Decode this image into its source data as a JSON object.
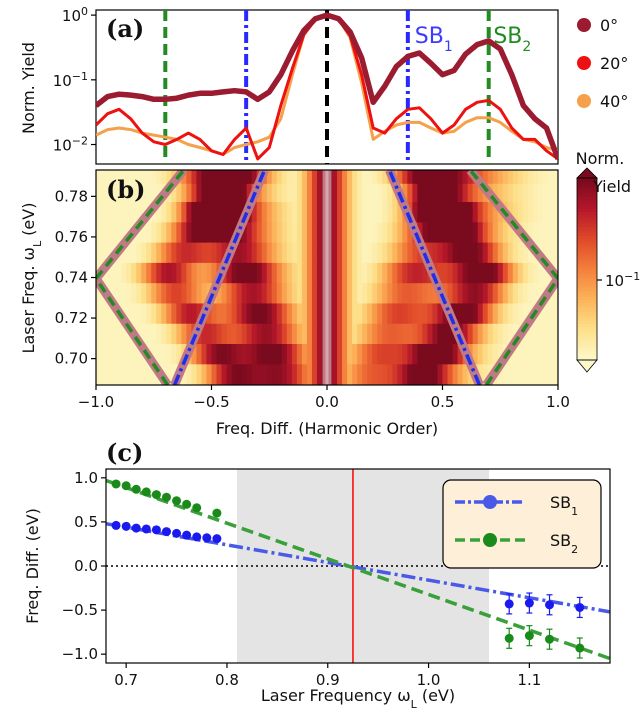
{
  "chart_data": [
    {
      "panel": "(a)",
      "type": "line",
      "ylabel": "Norm. Yield",
      "yscale": "log",
      "ylim": [
        0.005,
        1.2
      ],
      "xlim": [
        -1.0,
        1.0
      ],
      "yticks": [
        {
          "value": 0.01,
          "base": "10",
          "exp": "−2"
        },
        {
          "value": 0.1,
          "base": "10",
          "exp": "−1"
        },
        {
          "value": 1,
          "base": "10",
          "exp": "0"
        }
      ],
      "x": [
        -1.0,
        -0.95,
        -0.9,
        -0.85,
        -0.8,
        -0.75,
        -0.7,
        -0.65,
        -0.6,
        -0.55,
        -0.5,
        -0.45,
        -0.4,
        -0.35,
        -0.3,
        -0.25,
        -0.2,
        -0.15,
        -0.1,
        -0.05,
        0.0,
        0.05,
        0.1,
        0.15,
        0.2,
        0.25,
        0.3,
        0.35,
        0.4,
        0.45,
        0.5,
        0.55,
        0.6,
        0.65,
        0.7,
        0.75,
        0.8,
        0.85,
        0.9,
        0.95,
        1.0
      ],
      "series": [
        {
          "name": "0°",
          "color": "#9b1b30",
          "values": [
            0.04,
            0.055,
            0.06,
            0.058,
            0.055,
            0.05,
            0.05,
            0.052,
            0.058,
            0.062,
            0.062,
            0.065,
            0.068,
            0.065,
            0.05,
            0.065,
            0.12,
            0.28,
            0.58,
            0.88,
            1.0,
            0.88,
            0.55,
            0.22,
            0.045,
            0.08,
            0.16,
            0.23,
            0.26,
            0.18,
            0.12,
            0.14,
            0.25,
            0.35,
            0.4,
            0.3,
            0.12,
            0.04,
            0.025,
            0.018,
            0.006
          ]
        },
        {
          "name": "20°",
          "color": "#ee1111",
          "values": [
            0.02,
            0.03,
            0.035,
            0.025,
            0.015,
            0.011,
            0.01,
            0.012,
            0.015,
            0.012,
            0.008,
            0.007,
            0.012,
            0.018,
            0.006,
            0.009,
            0.04,
            0.15,
            0.5,
            0.85,
            1.0,
            0.85,
            0.48,
            0.12,
            0.018,
            0.015,
            0.025,
            0.035,
            0.037,
            0.025,
            0.015,
            0.02,
            0.035,
            0.045,
            0.048,
            0.035,
            0.018,
            0.012,
            0.012,
            0.008,
            0.006
          ]
        },
        {
          "name": "40°",
          "color": "#f5a04a",
          "values": [
            0.014,
            0.017,
            0.018,
            0.017,
            0.015,
            0.014,
            0.013,
            0.012,
            0.01,
            0.009,
            0.008,
            0.007,
            0.009,
            0.01,
            0.011,
            0.013,
            0.025,
            0.12,
            0.5,
            0.88,
            1.0,
            0.88,
            0.45,
            0.09,
            0.012,
            0.016,
            0.02,
            0.022,
            0.022,
            0.018,
            0.015,
            0.016,
            0.022,
            0.026,
            0.026,
            0.022,
            0.016,
            0.012,
            0.011,
            0.009,
            0.008
          ]
        }
      ],
      "vlines": [
        {
          "x": 0.0,
          "color": "#000000",
          "style": "dashed"
        },
        {
          "x": -0.35,
          "color": "#2828ff",
          "style": "dashdot"
        },
        {
          "x": 0.35,
          "color": "#2828ff",
          "style": "dashdot"
        },
        {
          "x": -0.7,
          "color": "#228b22",
          "style": "dashed"
        },
        {
          "x": 0.7,
          "color": "#228b22",
          "style": "dashed"
        }
      ],
      "annotations": [
        {
          "text": "SB",
          "sub": "1",
          "x": 0.38,
          "color": "#3b3bff"
        },
        {
          "text": "SB",
          "sub": "2",
          "x": 0.72,
          "color": "#228b22"
        }
      ],
      "legend": {
        "placement": "right",
        "entries": [
          {
            "label": "0°",
            "color": "#9b1b30"
          },
          {
            "label": "20°",
            "color": "#ee1111"
          },
          {
            "label": "40°",
            "color": "#f5a04a"
          }
        ]
      }
    },
    {
      "panel": "(b)",
      "type": "heatmap",
      "xlabel": "Freq. Diff. (Harmonic Order)",
      "ylabel": "Laser Freq. ω_L (eV)",
      "ylabel_main": "Laser Freq. ω",
      "ylabel_sub": "L",
      "ylabel_unit": " (eV)",
      "xlim": [
        -1.0,
        1.0
      ],
      "ylim": [
        0.687,
        0.793
      ],
      "xticks": [
        "−1.0",
        "−0.5",
        "0.0",
        "0.5",
        "1.0"
      ],
      "xtick_values": [
        -1.0,
        -0.5,
        0.0,
        0.5,
        1.0
      ],
      "yticks": [
        "0.70",
        "0.72",
        "0.74",
        "0.76",
        "0.78"
      ],
      "ytick_values": [
        0.7,
        0.72,
        0.74,
        0.76,
        0.78
      ],
      "rows_omega": [
        0.6925,
        0.7025,
        0.7125,
        0.7225,
        0.7325,
        0.7425,
        0.7525,
        0.7625,
        0.7725,
        0.7825,
        0.7905
      ],
      "row_strength": [
        0.6,
        0.75,
        0.55,
        0.7,
        0.5,
        0.8,
        0.55,
        0.7,
        0.95,
        0.55,
        0.7
      ],
      "colorbar": {
        "label_line1": "Norm.",
        "label_line2": "Yield",
        "tick_base": "10",
        "tick_exp": "−1",
        "colors": [
          "#fdf8c8",
          "#fde08a",
          "#fcb45a",
          "#f4803c",
          "#e04a2a",
          "#b7182a",
          "#7a0a1e"
        ]
      }
    },
    {
      "panel": "(c)",
      "type": "scatter",
      "xlabel": "Laser Frequency ω_L (eV)",
      "xlabel_main": "Laser Frequency ω",
      "xlabel_sub": "L",
      "xlabel_unit": " (eV)",
      "ylabel": "Freq. Diff. (eV)",
      "xlim": [
        0.68,
        1.18
      ],
      "ylim": [
        -1.1,
        1.1
      ],
      "xticks": [
        "0.7",
        "0.8",
        "0.9",
        "1.0",
        "1.1"
      ],
      "xtick_values": [
        0.7,
        0.8,
        0.9,
        1.0,
        1.1
      ],
      "yticks": [
        "1.0",
        "0.5",
        "0.0",
        "−0.5",
        "−1.0"
      ],
      "ytick_values": [
        1.0,
        0.5,
        0.0,
        -0.5,
        -1.0
      ],
      "shaded_region": [
        0.81,
        1.06
      ],
      "vline": 0.925,
      "series": [
        {
          "name": "SB",
          "sub": "1",
          "color": "#1a1aee",
          "line_color": "#4a5ae8",
          "points": [
            [
              0.69,
              0.46
            ],
            [
              0.7,
              0.45
            ],
            [
              0.71,
              0.43
            ],
            [
              0.72,
              0.42
            ],
            [
              0.73,
              0.41
            ],
            [
              0.74,
              0.39
            ],
            [
              0.75,
              0.37
            ],
            [
              0.76,
              0.35
            ],
            [
              0.77,
              0.33
            ],
            [
              0.78,
              0.32
            ],
            [
              0.79,
              0.31
            ],
            [
              1.08,
              -0.43
            ],
            [
              1.1,
              -0.42
            ],
            [
              1.12,
              -0.44
            ],
            [
              1.15,
              -0.47
            ]
          ],
          "line": [
            [
              0.68,
              0.48
            ],
            [
              1.18,
              -0.52
            ]
          ]
        },
        {
          "name": "SB",
          "sub": "2",
          "color": "#1a8a1a",
          "line_color": "#3aa03a",
          "points": [
            [
              0.69,
              0.93
            ],
            [
              0.7,
              0.91
            ],
            [
              0.71,
              0.87
            ],
            [
              0.72,
              0.84
            ],
            [
              0.73,
              0.81
            ],
            [
              0.74,
              0.78
            ],
            [
              0.75,
              0.74
            ],
            [
              0.76,
              0.7
            ],
            [
              0.77,
              0.66
            ],
            [
              0.79,
              0.6
            ],
            [
              1.08,
              -0.82
            ],
            [
              1.1,
              -0.79
            ],
            [
              1.12,
              -0.83
            ],
            [
              1.15,
              -0.93
            ]
          ],
          "line": [
            [
              0.68,
              0.97
            ],
            [
              1.18,
              -1.05
            ]
          ]
        }
      ]
    }
  ]
}
